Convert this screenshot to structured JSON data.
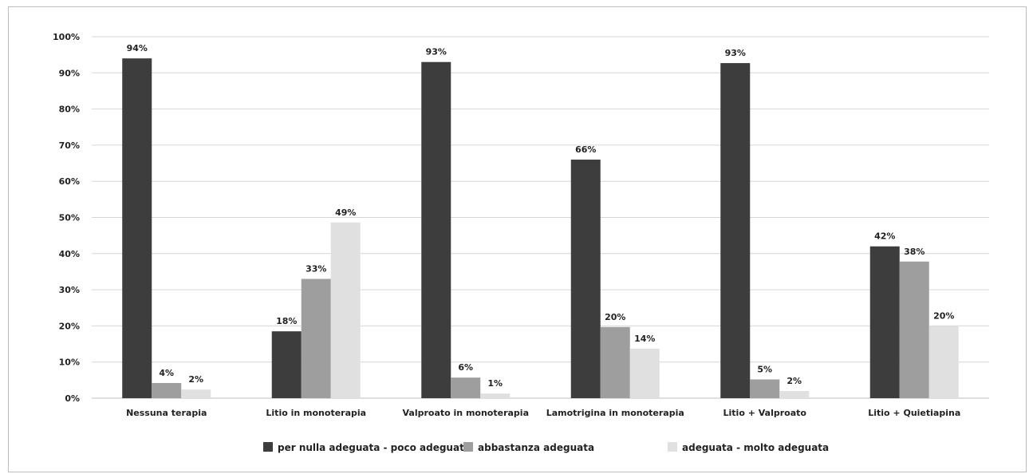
{
  "chart_data": {
    "type": "bar",
    "title": "",
    "xlabel": "",
    "ylabel": "",
    "ylim": [
      0,
      100
    ],
    "y_ticks": [
      "0%",
      "10%",
      "20%",
      "30%",
      "40%",
      "50%",
      "60%",
      "70%",
      "80%",
      "90%",
      "100%"
    ],
    "grid": true,
    "legend_position": "bottom",
    "categories": [
      "Nessuna terapia",
      "Litio in monoterapia",
      "Valproato in monoterapia",
      "Lamotrigina in monoterapia",
      "Litio + Valproato",
      "Litio + Quietiapina"
    ],
    "series": [
      {
        "name": "per nulla adeguata - poco adeguata",
        "color": "#3d3d3d",
        "values": [
          94,
          18.5,
          93,
          66,
          92.7,
          42
        ],
        "labels": [
          "94%",
          "18%",
          "93%",
          "66%",
          "93%",
          "42%"
        ]
      },
      {
        "name": "abbastanza adeguata",
        "color": "#9e9e9e",
        "values": [
          4.2,
          33,
          5.7,
          19.7,
          5.2,
          37.8
        ],
        "labels": [
          "4%",
          "33%",
          "6%",
          "20%",
          "5%",
          "38%"
        ]
      },
      {
        "name": "adeguata - molto adeguata",
        "color": "#e0e0e0",
        "values": [
          2.4,
          48.6,
          1.3,
          13.7,
          2,
          20
        ],
        "labels": [
          "2%",
          "49%",
          "1%",
          "14%",
          "2%",
          "20%"
        ]
      }
    ]
  }
}
